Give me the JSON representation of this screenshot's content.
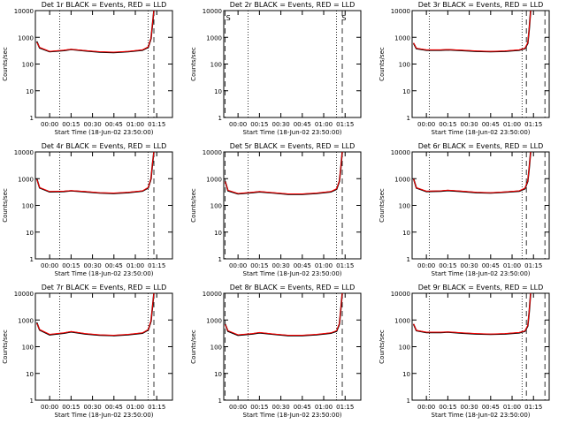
{
  "chart_data": [
    {
      "type": "line",
      "title": "Det 1r BLACK = Events, RED = LLD",
      "ylabel": "Counts/sec",
      "xlabel": "Start Time (18-Jun-02 23:50:00)",
      "log_y": true,
      "xlim": [
        "23:50",
        "01:26"
      ],
      "xticks": [
        "00:00",
        "00:15",
        "00:30",
        "00:45",
        "01:00",
        "01:15"
      ],
      "ylim": [
        1,
        10000
      ],
      "yticks": [
        1,
        10,
        100,
        1000,
        10000
      ],
      "x": [
        "23:51",
        "23:53",
        "00:00",
        "00:10",
        "00:15",
        "00:25",
        "00:35",
        "00:45",
        "00:55",
        "01:05",
        "01:09",
        "01:11",
        "01:12",
        "01:13"
      ],
      "series": [
        {
          "color": "#000000",
          "values": [
            700,
            400,
            290,
            320,
            350,
            310,
            280,
            270,
            290,
            330,
            420,
            900,
            3000,
            10000
          ]
        },
        {
          "color": "#ff0000",
          "values": [
            650,
            420,
            300,
            330,
            360,
            320,
            290,
            280,
            300,
            340,
            440,
            950,
            3200,
            10000
          ]
        }
      ],
      "vlines": [
        {
          "x": "00:07",
          "style": "dotted"
        },
        {
          "x": "01:09",
          "style": "dotted"
        },
        {
          "x": "01:13",
          "style": "dashed"
        },
        {
          "x": "01:26",
          "style": "dashed"
        }
      ]
    },
    {
      "type": "line",
      "title": "Det 2r BLACK = Events, RED = LLD",
      "ylabel": "Counts/sec",
      "xlabel": "Start Time (18-Jun-02 23:50:00)",
      "log_y": true,
      "xlim": [
        "23:50",
        "01:26"
      ],
      "xticks": [
        "00:00",
        "00:15",
        "00:30",
        "00:45",
        "01:00",
        "01:15"
      ],
      "ylim": [
        1,
        10000
      ],
      "yticks": [
        1,
        10,
        100,
        1000,
        10000
      ],
      "x": [],
      "series": [],
      "vlines": [
        {
          "x": "23:51",
          "style": "dashed"
        },
        {
          "x": "00:07",
          "style": "dotted"
        },
        {
          "x": "01:09",
          "style": "dotted"
        },
        {
          "x": "01:13",
          "style": "dashed"
        },
        {
          "x": "01:26",
          "style": "dashed"
        }
      ],
      "annotations": [
        {
          "text": "S",
          "x": "23:51"
        },
        {
          "text": "S",
          "x": "01:12"
        }
      ]
    },
    {
      "type": "line",
      "title": "Det 3r BLACK = Events, RED = LLD",
      "ylabel": "Counts/sec",
      "xlabel": "Start Time (18-Jun-02 23:50:00)",
      "log_y": true,
      "xlim": [
        "23:50",
        "01:26"
      ],
      "xticks": [
        "00:00",
        "00:15",
        "00:30",
        "00:45",
        "01:00",
        "01:15"
      ],
      "ylim": [
        1,
        10000
      ],
      "yticks": [
        1,
        10,
        100,
        1000,
        10000
      ],
      "x": [
        "23:51",
        "23:53",
        "00:00",
        "00:10",
        "00:15",
        "00:25",
        "00:35",
        "00:45",
        "00:55",
        "01:05",
        "01:09",
        "01:11",
        "01:12",
        "01:13"
      ],
      "series": [
        {
          "color": "#000000",
          "values": [
            600,
            380,
            330,
            330,
            340,
            320,
            300,
            290,
            300,
            330,
            380,
            600,
            2000,
            10000
          ]
        },
        {
          "color": "#ff0000",
          "values": [
            620,
            390,
            340,
            340,
            350,
            330,
            310,
            300,
            310,
            340,
            390,
            640,
            2200,
            10000
          ]
        }
      ],
      "vlines": [
        {
          "x": "00:02",
          "style": "dotted"
        },
        {
          "x": "01:07",
          "style": "dotted"
        },
        {
          "x": "01:10",
          "style": "dashed"
        },
        {
          "x": "01:23",
          "style": "dashed"
        }
      ]
    },
    {
      "type": "line",
      "title": "Det 4r BLACK = Events, RED = LLD",
      "ylabel": "Counts/sec",
      "xlabel": "Start Time (18-Jun-02 23:50:00)",
      "log_y": true,
      "xlim": [
        "23:50",
        "01:26"
      ],
      "xticks": [
        "00:00",
        "00:15",
        "00:30",
        "00:45",
        "01:00",
        "01:15"
      ],
      "ylim": [
        1,
        10000
      ],
      "yticks": [
        1,
        10,
        100,
        1000,
        10000
      ],
      "x": [
        "23:51",
        "23:53",
        "00:00",
        "00:10",
        "00:15",
        "00:25",
        "00:35",
        "00:45",
        "00:55",
        "01:05",
        "01:09",
        "01:11",
        "01:12",
        "01:13"
      ],
      "series": [
        {
          "color": "#000000",
          "values": [
            1000,
            450,
            320,
            330,
            350,
            320,
            290,
            280,
            300,
            340,
            450,
            1000,
            3500,
            10000
          ]
        },
        {
          "color": "#ff0000",
          "values": [
            950,
            470,
            330,
            340,
            360,
            330,
            300,
            290,
            310,
            350,
            470,
            1050,
            3700,
            10000
          ]
        }
      ],
      "vlines": [
        {
          "x": "00:07",
          "style": "dotted"
        },
        {
          "x": "01:09",
          "style": "dotted"
        },
        {
          "x": "01:13",
          "style": "dashed"
        },
        {
          "x": "01:26",
          "style": "dashed"
        }
      ]
    },
    {
      "type": "line",
      "title": "Det 5r BLACK = Events, RED = LLD",
      "ylabel": "Counts/sec",
      "xlabel": "Start Time (18-Jun-02 23:50:00)",
      "log_y": true,
      "xlim": [
        "23:50",
        "01:26"
      ],
      "xticks": [
        "00:00",
        "00:15",
        "00:30",
        "00:45",
        "01:00",
        "01:15"
      ],
      "ylim": [
        1,
        10000
      ],
      "yticks": [
        1,
        10,
        100,
        1000,
        10000
      ],
      "x": [
        "23:51",
        "23:53",
        "00:00",
        "00:10",
        "00:15",
        "00:25",
        "00:35",
        "00:45",
        "00:55",
        "01:05",
        "01:09",
        "01:11",
        "01:12",
        "01:13"
      ],
      "series": [
        {
          "color": "#000000",
          "values": [
            800,
            350,
            270,
            300,
            320,
            290,
            260,
            260,
            280,
            320,
            400,
            800,
            2500,
            10000
          ]
        },
        {
          "color": "#ff0000",
          "values": [
            780,
            370,
            280,
            310,
            330,
            300,
            270,
            270,
            290,
            330,
            420,
            850,
            2700,
            10000
          ]
        }
      ],
      "vlines": [
        {
          "x": "23:51",
          "style": "dashed"
        },
        {
          "x": "00:07",
          "style": "dotted"
        },
        {
          "x": "01:09",
          "style": "dotted"
        },
        {
          "x": "01:13",
          "style": "dashed"
        },
        {
          "x": "01:26",
          "style": "dashed"
        }
      ]
    },
    {
      "type": "line",
      "title": "Det 6r BLACK = Events, RED = LLD",
      "ylabel": "Counts/sec",
      "xlabel": "Start Time (18-Jun-02 23:50:00)",
      "log_y": true,
      "xlim": [
        "23:50",
        "01:26"
      ],
      "xticks": [
        "00:00",
        "00:15",
        "00:30",
        "00:45",
        "01:00",
        "01:15"
      ],
      "ylim": [
        1,
        10000
      ],
      "yticks": [
        1,
        10,
        100,
        1000,
        10000
      ],
      "x": [
        "23:51",
        "23:53",
        "00:00",
        "00:10",
        "00:15",
        "00:25",
        "00:35",
        "00:45",
        "00:55",
        "01:05",
        "01:09",
        "01:11",
        "01:12",
        "01:13"
      ],
      "series": [
        {
          "color": "#000000",
          "values": [
            1000,
            450,
            330,
            340,
            360,
            330,
            300,
            290,
            310,
            340,
            420,
            800,
            2500,
            10000
          ]
        },
        {
          "color": "#ff0000",
          "values": [
            980,
            460,
            340,
            350,
            370,
            340,
            310,
            300,
            320,
            350,
            440,
            850,
            2700,
            10000
          ]
        }
      ],
      "vlines": [
        {
          "x": "00:02",
          "style": "dotted"
        },
        {
          "x": "01:07",
          "style": "dotted"
        },
        {
          "x": "01:10",
          "style": "dashed"
        },
        {
          "x": "01:23",
          "style": "dashed"
        }
      ]
    },
    {
      "type": "line",
      "title": "Det 7r BLACK = Events, RED = LLD",
      "ylabel": "Counts/sec",
      "xlabel": "Start Time (18-Jun-02 23:50:00)",
      "log_y": true,
      "xlim": [
        "23:50",
        "01:26"
      ],
      "xticks": [
        "00:00",
        "00:15",
        "00:30",
        "00:45",
        "01:00",
        "01:15"
      ],
      "ylim": [
        1,
        10000
      ],
      "yticks": [
        1,
        10,
        100,
        1000,
        10000
      ],
      "x": [
        "23:51",
        "23:53",
        "00:00",
        "00:10",
        "00:15",
        "00:25",
        "00:35",
        "00:45",
        "00:55",
        "01:05",
        "01:09",
        "01:11",
        "01:12",
        "01:13"
      ],
      "series": [
        {
          "color": "#000000",
          "values": [
            800,
            420,
            280,
            320,
            360,
            300,
            270,
            260,
            280,
            320,
            420,
            900,
            3000,
            10000
          ]
        },
        {
          "color": "#ff0000",
          "values": [
            760,
            440,
            290,
            330,
            370,
            310,
            280,
            270,
            290,
            330,
            440,
            950,
            3200,
            10000
          ]
        }
      ],
      "vlines": [
        {
          "x": "00:07",
          "style": "dotted"
        },
        {
          "x": "01:09",
          "style": "dotted"
        },
        {
          "x": "01:13",
          "style": "dashed"
        },
        {
          "x": "01:26",
          "style": "dashed"
        }
      ]
    },
    {
      "type": "line",
      "title": "Det 8r BLACK = Events, RED = LLD",
      "ylabel": "Counts/sec",
      "xlabel": "Start Time (18-Jun-02 23:50:00)",
      "log_y": true,
      "xlim": [
        "23:50",
        "01:26"
      ],
      "xticks": [
        "00:00",
        "00:15",
        "00:30",
        "00:45",
        "01:00",
        "01:15"
      ],
      "ylim": [
        1,
        10000
      ],
      "yticks": [
        1,
        10,
        100,
        1000,
        10000
      ],
      "x": [
        "23:51",
        "23:53",
        "00:00",
        "00:10",
        "00:15",
        "00:25",
        "00:35",
        "00:45",
        "00:55",
        "01:05",
        "01:09",
        "01:11",
        "01:12",
        "01:13"
      ],
      "series": [
        {
          "color": "#000000",
          "values": [
            700,
            380,
            270,
            300,
            330,
            290,
            260,
            260,
            280,
            320,
            380,
            700,
            2500,
            10000
          ]
        },
        {
          "color": "#ff0000",
          "values": [
            680,
            400,
            280,
            310,
            340,
            300,
            270,
            270,
            290,
            330,
            400,
            750,
            2700,
            10000
          ]
        }
      ],
      "vlines": [
        {
          "x": "23:51",
          "style": "dashed"
        },
        {
          "x": "00:07",
          "style": "dotted"
        },
        {
          "x": "01:09",
          "style": "dotted"
        },
        {
          "x": "01:13",
          "style": "dashed"
        },
        {
          "x": "01:26",
          "style": "dashed"
        }
      ]
    },
    {
      "type": "line",
      "title": "Det 9r BLACK = Events, RED = LLD",
      "ylabel": "Counts/sec",
      "xlabel": "Start Time (18-Jun-02 23:50:00)",
      "log_y": true,
      "xlim": [
        "23:50",
        "01:26"
      ],
      "xticks": [
        "00:00",
        "00:15",
        "00:30",
        "00:45",
        "01:00",
        "01:15"
      ],
      "ylim": [
        1,
        10000
      ],
      "yticks": [
        1,
        10,
        100,
        1000,
        10000
      ],
      "x": [
        "23:51",
        "23:53",
        "00:00",
        "00:10",
        "00:15",
        "00:25",
        "00:35",
        "00:45",
        "00:55",
        "01:05",
        "01:09",
        "01:11",
        "01:12",
        "01:13"
      ],
      "series": [
        {
          "color": "#000000",
          "values": [
            700,
            400,
            340,
            340,
            350,
            320,
            300,
            290,
            300,
            330,
            380,
            600,
            2000,
            10000
          ]
        },
        {
          "color": "#ff0000",
          "values": [
            720,
            410,
            350,
            350,
            360,
            330,
            310,
            300,
            310,
            340,
            390,
            640,
            2200,
            10000
          ]
        }
      ],
      "vlines": [
        {
          "x": "00:02",
          "style": "dotted"
        },
        {
          "x": "01:07",
          "style": "dotted"
        },
        {
          "x": "01:10",
          "style": "dashed"
        },
        {
          "x": "01:23",
          "style": "dashed"
        }
      ]
    }
  ]
}
